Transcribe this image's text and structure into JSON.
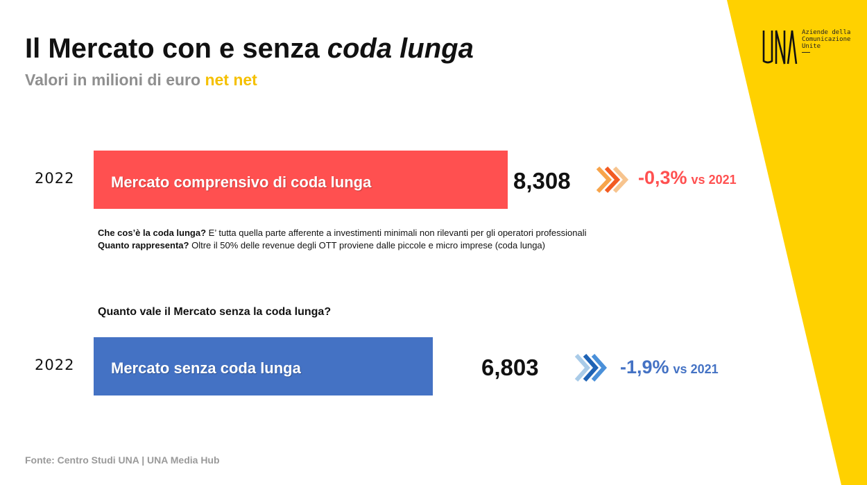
{
  "title": {
    "main": "Il Mercato con e senza ",
    "emphasis": "coda lunga"
  },
  "subtitle": {
    "text": "Valori in milioni di euro ",
    "highlight": "net net"
  },
  "logo": {
    "mark": "UNA",
    "line1": "Aziende della",
    "line2": "Comunicazione",
    "line3": "Unite"
  },
  "colors": {
    "yellow": "#FFD100",
    "red": "#FF5050",
    "blue": "#4472C4",
    "text": "#111111"
  },
  "notes": {
    "what_label": "Che cos’è la coda lunga?",
    "what_text": "  E’ tutta quella parte afferente a investimenti minimali non rilevanti per gli operatori professionali",
    "how_label": "Quanto rappresenta?",
    "how_text": " Oltre il 50% delle revenue degli OTT proviene dalle piccole e micro imprese (coda lunga)"
  },
  "question": "Quanto vale il Mercato senza la coda lunga?",
  "source": "Fonte: Centro Studi UNA | UNA Media Hub",
  "chart_data": {
    "type": "bar",
    "orientation": "horizontal",
    "categories": [
      "Mercato comprensivo di coda lunga",
      "Mercato senza coda lunga"
    ],
    "years": [
      "2022",
      "2022"
    ],
    "values": [
      8308,
      6803
    ],
    "value_labels": [
      "8,308",
      "6,803"
    ],
    "changes": [
      "-0,3%",
      "-1,9%"
    ],
    "change_suffix": "vs 2021",
    "colors": [
      "#FF5050",
      "#4472C4"
    ],
    "chevron_icons": [
      "chevron-double-right-icon",
      "chevron-double-right-icon"
    ]
  }
}
